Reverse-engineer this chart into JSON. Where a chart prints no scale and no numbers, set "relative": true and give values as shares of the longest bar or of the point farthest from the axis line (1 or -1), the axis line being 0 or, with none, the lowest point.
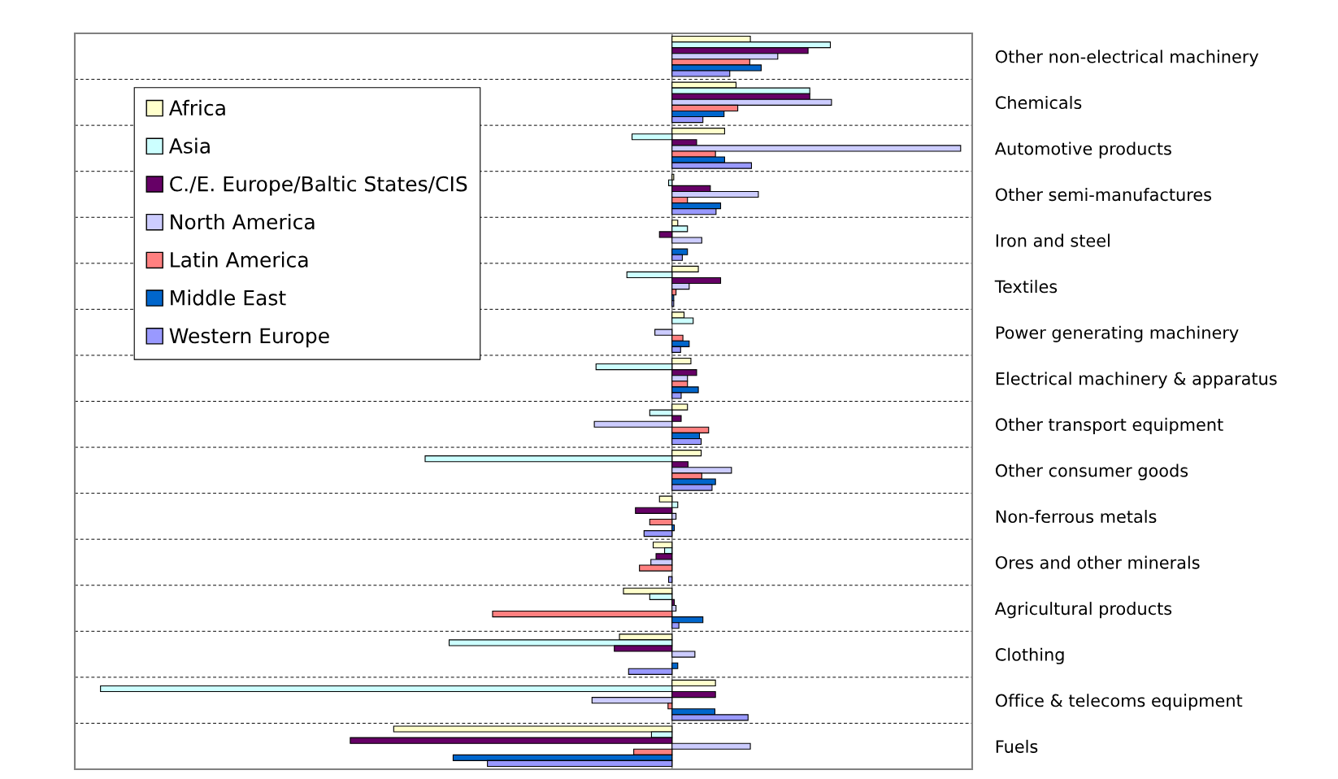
{
  "chart_data": {
    "type": "bar",
    "orientation": "horizontal",
    "relative": true,
    "grid": "y",
    "legend": "top left",
    "categories": [
      "Other non-electrical machinery",
      "Chemicals",
      "Automotive products",
      "Other semi-manufactures",
      "Iron and steel",
      "Textiles",
      "Power generating machinery",
      "Electrical machinery & apparatus",
      "Other transport equipment",
      "Other consumer goods",
      "Non-ferrous metals",
      "Ores and other minerals",
      "Agricultural products",
      "Clothing",
      "Office & telecoms equipment",
      "Fuels"
    ],
    "series": [
      {
        "name": "Africa",
        "color": "#ffffcc",
        "values": [
          0.137,
          0.112,
          0.092,
          0.003,
          0.01,
          0.046,
          0.021,
          0.033,
          0.027,
          0.051,
          -0.022,
          -0.033,
          -0.085,
          -0.092,
          0.076,
          -0.487
        ]
      },
      {
        "name": "Asia",
        "color": "#ccffff",
        "values": [
          0.277,
          0.241,
          -0.07,
          -0.006,
          0.027,
          -0.079,
          0.037,
          -0.133,
          -0.039,
          -0.432,
          0.01,
          -0.013,
          -0.039,
          -0.39,
          -1,
          -0.036
        ]
      },
      {
        "name": "C./E. Europe/Baltic States/CIS",
        "color": "#660066",
        "values": [
          0.238,
          0.241,
          0.043,
          0.067,
          -0.022,
          0.085,
          null,
          0.043,
          0.016,
          0.028,
          -0.064,
          -0.028,
          0.004,
          -0.101,
          0.076,
          -0.563
        ]
      },
      {
        "name": "North America",
        "color": "#ccccff",
        "values": [
          0.185,
          0.279,
          0.505,
          0.151,
          0.052,
          0.03,
          -0.03,
          0.027,
          -0.136,
          0.104,
          0.007,
          -0.037,
          0.007,
          0.04,
          -0.14,
          0.137
        ]
      },
      {
        "name": "Latin America",
        "color": "#ff8080",
        "values": [
          0.136,
          0.115,
          0.076,
          0.027,
          null,
          0.007,
          0.019,
          0.027,
          0.064,
          0.052,
          -0.039,
          -0.057,
          -0.314,
          null,
          -0.007,
          -0.067
        ]
      },
      {
        "name": "Middle East",
        "color": "#0066cc",
        "values": [
          0.156,
          0.091,
          0.092,
          0.085,
          0.027,
          0.003,
          0.03,
          0.046,
          0.048,
          0.076,
          0.004,
          null,
          0.054,
          0.01,
          0.075,
          -0.383
        ]
      },
      {
        "name": "Western Europe",
        "color": "#9999ff",
        "values": [
          0.101,
          0.054,
          0.139,
          0.077,
          0.018,
          0.003,
          0.015,
          0.016,
          0.051,
          0.07,
          -0.049,
          -0.006,
          0.012,
          -0.076,
          0.133,
          -0.323
        ]
      }
    ]
  }
}
